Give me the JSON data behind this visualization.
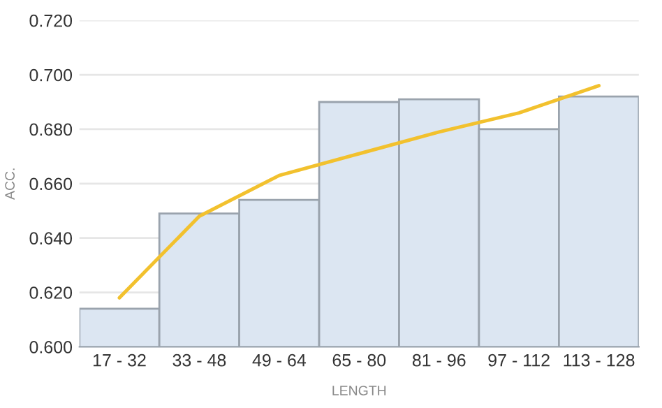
{
  "chart_data": {
    "type": "bar",
    "xlabel": "LENGTH",
    "ylabel": "ACC.",
    "categories": [
      "17 - 32",
      "33 - 48",
      "49 - 64",
      "65 - 80",
      "81 - 96",
      "97 - 112",
      "113 - 128"
    ],
    "series": [
      {
        "color": "#dce6f2",
        "values": [
          0.614,
          0.649,
          0.654,
          0.69,
          0.691,
          0.68,
          0.692
        ]
      },
      {
        "type": "line",
        "color": "#f2c12e",
        "values": [
          0.618,
          0.648,
          0.663,
          0.671,
          0.679,
          0.686,
          0.696
        ]
      }
    ],
    "ylim": [
      0.6,
      0.72
    ],
    "yticks": [
      {
        "value": 0.6,
        "label": "0.600"
      },
      {
        "value": 0.62,
        "label": "0.620"
      },
      {
        "value": 0.64,
        "label": "0.640"
      },
      {
        "value": 0.66,
        "label": "0.660"
      },
      {
        "value": 0.68,
        "label": "0.680"
      },
      {
        "value": 0.7,
        "label": "0.700"
      },
      {
        "value": 0.72,
        "label": "0.720"
      }
    ],
    "grid": "y",
    "legend": false
  }
}
